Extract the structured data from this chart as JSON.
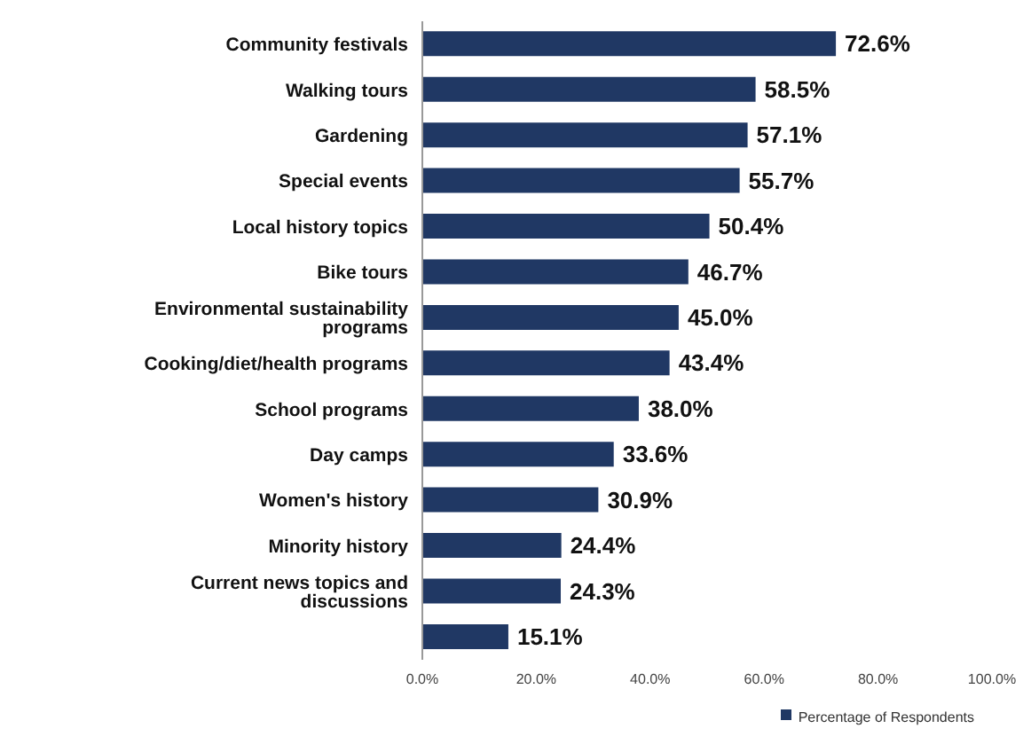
{
  "chart_data": {
    "type": "bar",
    "orientation": "horizontal",
    "categories": [
      "Community festivals",
      "Walking tours",
      "Gardening",
      "Special events",
      "Local history topics",
      "Bike tours",
      "Environmental sustainability programs",
      "Cooking/diet/health programs",
      "School programs",
      "Day camps",
      "Women's history",
      "Minority history",
      "Current news topics and discussions",
      null
    ],
    "series": [
      {
        "name": "Percentage of Respondents",
        "color": "#203864",
        "values": [
          72.6,
          58.5,
          57.1,
          55.7,
          50.4,
          46.7,
          45.0,
          43.4,
          38.0,
          33.6,
          30.9,
          24.4,
          24.3,
          15.1
        ],
        "value_labels": [
          "72.6%",
          "58.5%",
          "57.1%",
          "55.7%",
          "50.4%",
          "46.7%",
          "45.0%",
          "43.4%",
          "38.0%",
          "33.6%",
          "30.9%",
          "24.4%",
          "24.3%",
          "15.1%"
        ]
      }
    ],
    "xlim": [
      0,
      100
    ],
    "xticks": [
      {
        "value": 0,
        "label": "0.0%"
      },
      {
        "value": 20,
        "label": "20.0%"
      },
      {
        "value": 40,
        "label": "40.0%"
      },
      {
        "value": 60,
        "label": "60.0%"
      },
      {
        "value": 80,
        "label": "80.0%"
      },
      {
        "value": 100,
        "label": "100.0%"
      }
    ],
    "grid": false,
    "legend": "bottom right"
  }
}
